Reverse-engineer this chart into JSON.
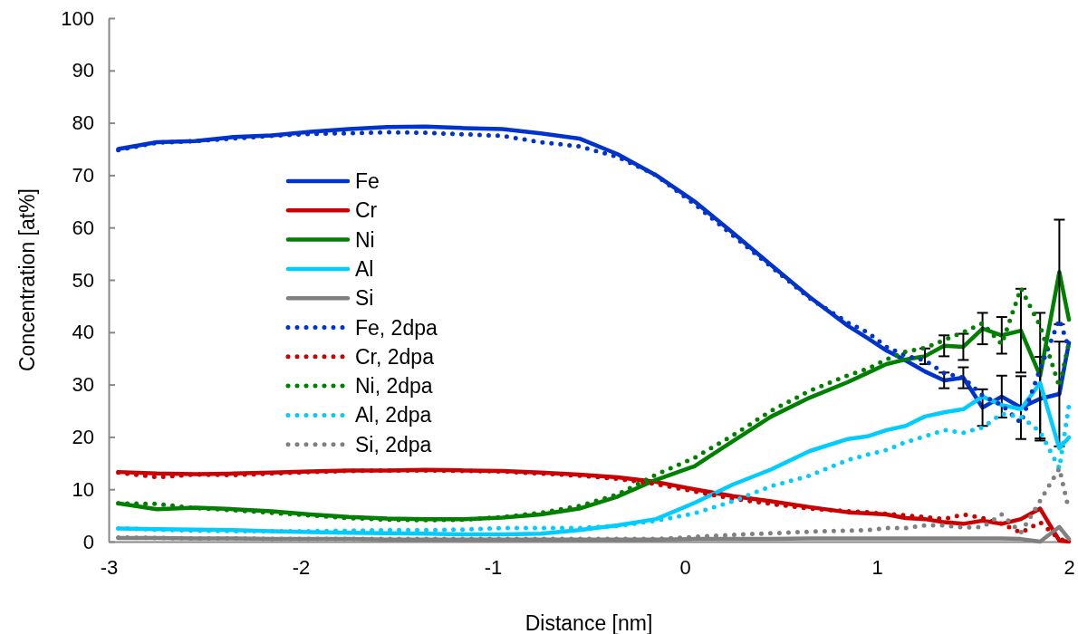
{
  "chart_data": {
    "type": "line",
    "xlabel": "Distance [nm]",
    "ylabel": "Concentration [at%]",
    "xlim": [
      -3,
      2
    ],
    "xticks": [
      -3,
      -2,
      -1,
      0,
      1,
      2
    ],
    "ylim": [
      0,
      100
    ],
    "yticks": [
      0,
      10,
      20,
      30,
      40,
      50,
      60,
      70,
      80,
      90,
      100
    ],
    "grid": false,
    "legend": "left",
    "x": [
      -2.95,
      -2.75,
      -2.55,
      -2.35,
      -2.15,
      -1.95,
      -1.75,
      -1.55,
      -1.35,
      -1.15,
      -0.95,
      -0.75,
      -0.55,
      -0.35,
      -0.15,
      0.05,
      0.25,
      0.45,
      0.65,
      0.85,
      0.95,
      1.05,
      1.15,
      1.25,
      1.35,
      1.45,
      1.55,
      1.65,
      1.75,
      1.85,
      1.95,
      2.0
    ],
    "series": [
      {
        "name": "Fe",
        "color": "#0033cc",
        "line_style": "solid",
        "values": [
          75,
          76.3,
          76.5,
          77.3,
          77.6,
          78.3,
          78.8,
          79.2,
          79.3,
          79,
          78.8,
          78,
          77,
          74,
          70,
          65,
          59,
          52.8,
          46.7,
          41.2,
          38.9,
          36.5,
          34.6,
          32.5,
          30.8,
          31.3,
          25.6,
          27.7,
          25.6,
          27.3,
          28.2,
          38
        ],
        "errors": [
          null,
          null,
          null,
          null,
          null,
          null,
          null,
          null,
          null,
          null,
          null,
          null,
          null,
          null,
          null,
          null,
          null,
          null,
          null,
          null,
          null,
          null,
          null,
          null,
          1.5,
          2,
          3.5,
          4,
          6,
          8,
          10,
          null
        ]
      },
      {
        "name": "Cr",
        "color": "#cc0000",
        "line_style": "solid",
        "values": [
          13.3,
          13,
          12.9,
          13,
          13.2,
          13.4,
          13.6,
          13.6,
          13.7,
          13.6,
          13.5,
          13.2,
          12.8,
          12.3,
          11.4,
          10,
          8.7,
          7.7,
          6.6,
          5.6,
          5.4,
          5.2,
          4.5,
          4.3,
          3.7,
          3.4,
          4,
          3.4,
          4.3,
          6.3,
          0.2,
          0
        ]
      },
      {
        "name": "Ni",
        "color": "#008000",
        "line_style": "solid",
        "values": [
          7.3,
          6.2,
          6.5,
          6.2,
          5.8,
          5.2,
          4.7,
          4.4,
          4.3,
          4.3,
          4.6,
          5.2,
          6.3,
          8.6,
          11.8,
          14.4,
          19.2,
          23.9,
          27.5,
          30.5,
          32.2,
          33.9,
          34.8,
          35.4,
          37.4,
          37.2,
          40.7,
          39.4,
          40.3,
          31.7,
          51.5,
          42.4
        ],
        "errors": [
          null,
          null,
          null,
          null,
          null,
          null,
          null,
          null,
          null,
          null,
          null,
          null,
          null,
          null,
          null,
          null,
          null,
          null,
          null,
          null,
          null,
          null,
          null,
          1.5,
          2,
          2.5,
          3,
          3.5,
          8,
          12,
          10,
          null
        ]
      },
      {
        "name": "Al",
        "color": "#00ccff",
        "line_style": "solid",
        "values": [
          2.5,
          2.4,
          2.3,
          2.2,
          2,
          1.8,
          1.7,
          1.6,
          1.5,
          1.4,
          1.4,
          1.5,
          2.2,
          3.1,
          4.3,
          7.4,
          10.9,
          13.8,
          17.3,
          19.6,
          20.1,
          21.3,
          22.1,
          23.9,
          24.7,
          25.3,
          27.7,
          26.1,
          25.3,
          30.3,
          17.8,
          19.9
        ]
      },
      {
        "name": "Si",
        "color": "#808080",
        "line_style": "solid",
        "values": [
          0.7,
          0.7,
          0.6,
          0.6,
          0.5,
          0.5,
          0.5,
          0.4,
          0.4,
          0.4,
          0.4,
          0.4,
          0.4,
          0.4,
          0.4,
          0.5,
          0.5,
          0.5,
          0.6,
          0.6,
          0.6,
          0.6,
          0.6,
          0.6,
          0.6,
          0.6,
          0.6,
          0.6,
          0.5,
          0,
          2.8,
          0.5
        ]
      },
      {
        "name": "Fe, 2dpa",
        "color": "#0033cc",
        "line_style": "dotted",
        "values": [
          74.8,
          76.2,
          76.5,
          77,
          77.5,
          77.9,
          78,
          78.2,
          78.1,
          77.8,
          77.5,
          76.3,
          75.5,
          73.5,
          70,
          64.5,
          58.5,
          52.5,
          46.5,
          41.8,
          40,
          37.2,
          35.5,
          34.6,
          32.2,
          31.3,
          27.9,
          26.1,
          22.7,
          33,
          42.4,
          37
        ]
      },
      {
        "name": "Cr, 2dpa",
        "color": "#cc0000",
        "line_style": "dotted",
        "values": [
          13.2,
          12.3,
          12.8,
          12.7,
          13,
          13.3,
          13.5,
          13.6,
          13.6,
          13.5,
          13.4,
          13,
          12.6,
          12,
          11,
          9.6,
          8.2,
          7.2,
          6.3,
          5.8,
          5.6,
          5.3,
          5,
          4.7,
          4.3,
          5.2,
          4.5,
          3.4,
          1.7,
          3.7,
          0.5,
          0
        ]
      },
      {
        "name": "Ni, 2dpa",
        "color": "#008000",
        "line_style": "dotted",
        "values": [
          7.3,
          7.2,
          6.4,
          6,
          5.5,
          5,
          4.5,
          4.2,
          4.1,
          4.2,
          4.7,
          5.5,
          6.8,
          9,
          12.8,
          16,
          20.3,
          25,
          28.8,
          31.8,
          33,
          34.8,
          36.3,
          37,
          38.5,
          40,
          41.7,
          37.7,
          48.4,
          41.2,
          29.6,
          38
        ]
      },
      {
        "name": "Al, 2dpa",
        "color": "#00ccff",
        "line_style": "dotted",
        "values": [
          2.5,
          2.3,
          2.1,
          2,
          2,
          2,
          2.1,
          2.2,
          2.2,
          2.3,
          2.6,
          2.6,
          2.6,
          3,
          4,
          5.4,
          7.7,
          10.6,
          12.6,
          15.6,
          16.6,
          17.5,
          19,
          20.1,
          21.3,
          20.8,
          21.8,
          24.4,
          23.9,
          21,
          14,
          26
        ]
      },
      {
        "name": "Si, 2dpa",
        "color": "#808080",
        "line_style": "dotted",
        "values": [
          0.8,
          0.7,
          0.6,
          0.6,
          0.5,
          0.5,
          0.5,
          0.5,
          0.5,
          0.5,
          0.5,
          0.5,
          0.5,
          0.5,
          0.5,
          0.9,
          1.3,
          1.6,
          1.9,
          2.1,
          2.2,
          2.6,
          2.6,
          3.1,
          3.1,
          2.7,
          2.8,
          5.2,
          1.7,
          7.8,
          14,
          6
        ]
      }
    ]
  }
}
